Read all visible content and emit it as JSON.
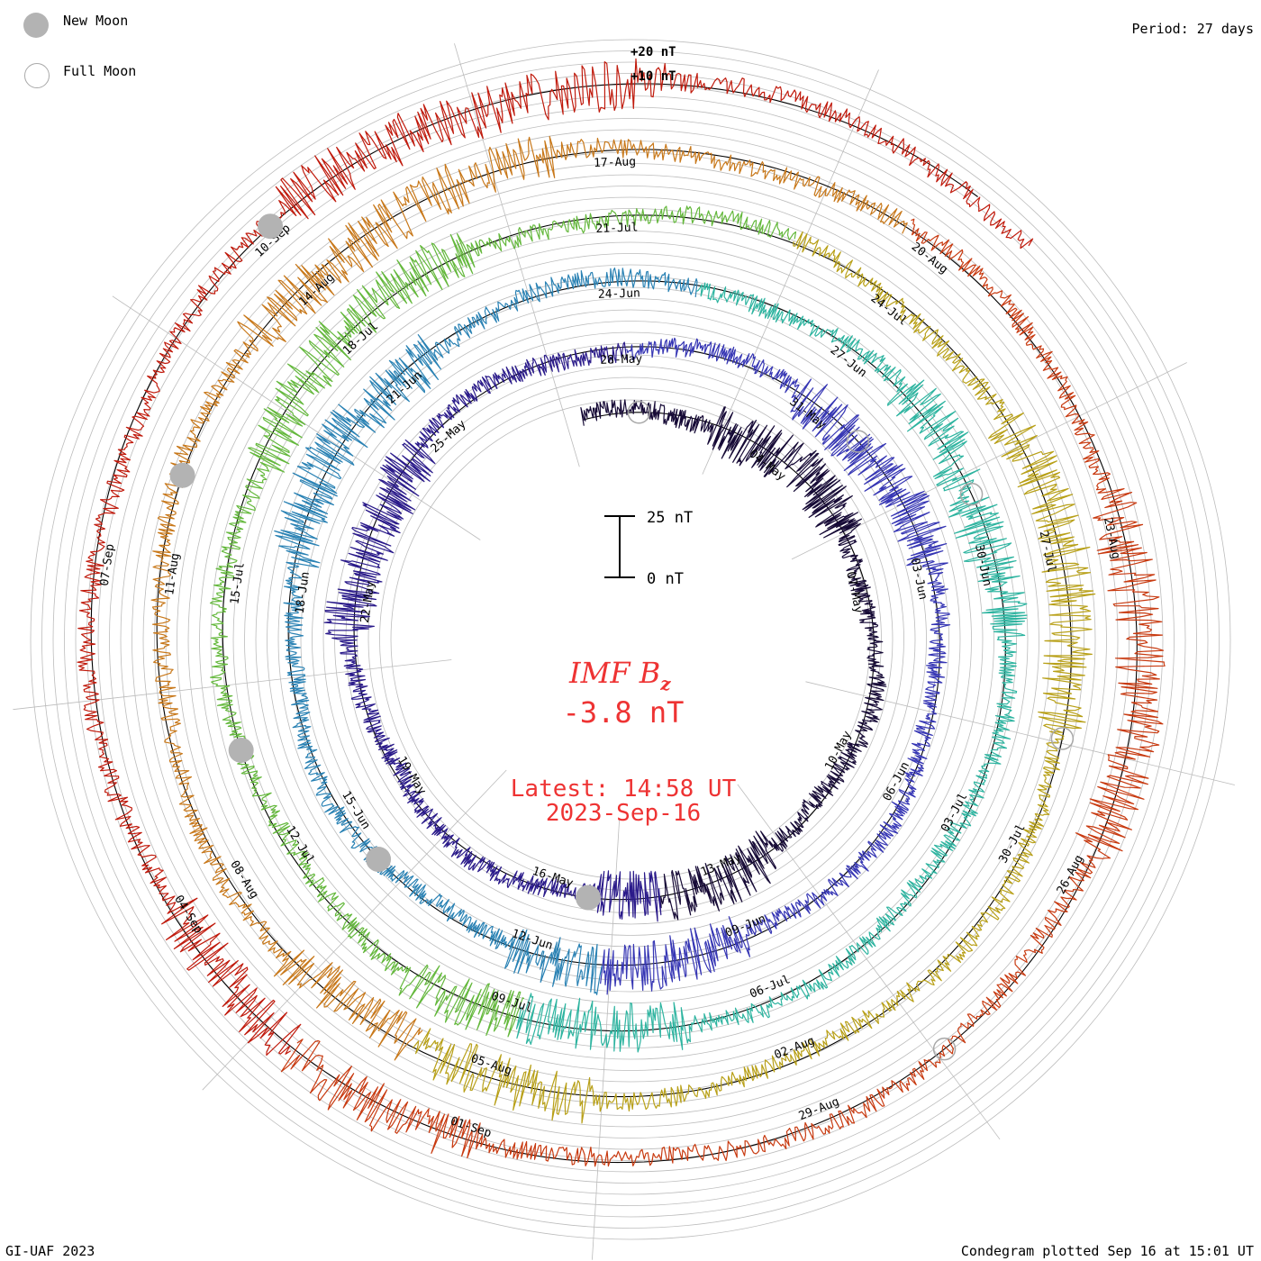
{
  "legend": {
    "new_moon": "New Moon",
    "full_moon": "Full Moon"
  },
  "header": {
    "period": "Period: 27 days"
  },
  "footer": {
    "credit": "GI-UAF 2023",
    "plotted": "Condegram plotted Sep 16 at 15:01 UT"
  },
  "scale": {
    "outer_top": "+20 nT",
    "outer_bottom": "+10 nT",
    "bar_top": "25 nT",
    "bar_bottom": "0 nT"
  },
  "center": {
    "quantity": "IMF B",
    "subscript": "z",
    "value": "-3.8 nT",
    "latest": "Latest: 14:58 UT",
    "date": "2023-Sep-16"
  },
  "colors": {
    "center_text": "#ee3333",
    "baseline": "#000000",
    "grid": "#bcbcbc",
    "rotations": [
      "#160a36",
      "#2a1a8a",
      "#3636b4",
      "#2a82b4",
      "#2eb4a0",
      "#64b83c",
      "#b8a018",
      "#c8781a",
      "#c83a10",
      "#c01a0c"
    ]
  },
  "chart_data": {
    "type": "line",
    "title": "IMF Bz",
    "period_days": 27,
    "unit": "nT",
    "current_value": -3.8,
    "latest": "2023-Sep-16 14:58 UT",
    "rotations": [
      {
        "index": 1,
        "date_labels": [
          "04-May",
          "07-May",
          "10-May",
          "13-May",
          "16-May",
          "19-May",
          "22-May",
          "25-May",
          "28-May",
          "31-May"
        ]
      },
      {
        "index": 2,
        "date_labels": [
          "03-Jun",
          "06-Jun",
          "09-Jun",
          "12-Jun",
          "15-Jun",
          "18-Jun",
          "21-Jun",
          "24-Jun",
          "27-Jun"
        ]
      },
      {
        "index": 3,
        "date_labels": [
          "30-Jun",
          "03-Jul",
          "06-Jul",
          "09-Jul",
          "12-Jul",
          "15-Jul",
          "18-Jul",
          "21-Jul",
          "24-Jul"
        ]
      },
      {
        "index": 4,
        "date_labels": [
          "27-Jul",
          "30-Jul",
          "02-Aug",
          "05-Aug",
          "08-Aug",
          "11-Aug",
          "14-Aug",
          "17-Aug",
          "20-Aug"
        ]
      },
      {
        "index": 5,
        "date_labels": [
          "23-Aug",
          "26-Aug",
          "29-Aug",
          "01-Sep",
          "04-Sep",
          "07-Sep",
          "10-Sep"
        ]
      }
    ],
    "new_moons": [
      "2023-May-19",
      "2023-Jun-18",
      "2023-Jul-17",
      "2023-Aug-16",
      "2023-Sep-15"
    ],
    "full_moons": [
      "2023-May-05",
      "2023-Jun-04",
      "2023-Jul-03",
      "2023-Aug-01",
      "2023-Aug-31"
    ]
  }
}
